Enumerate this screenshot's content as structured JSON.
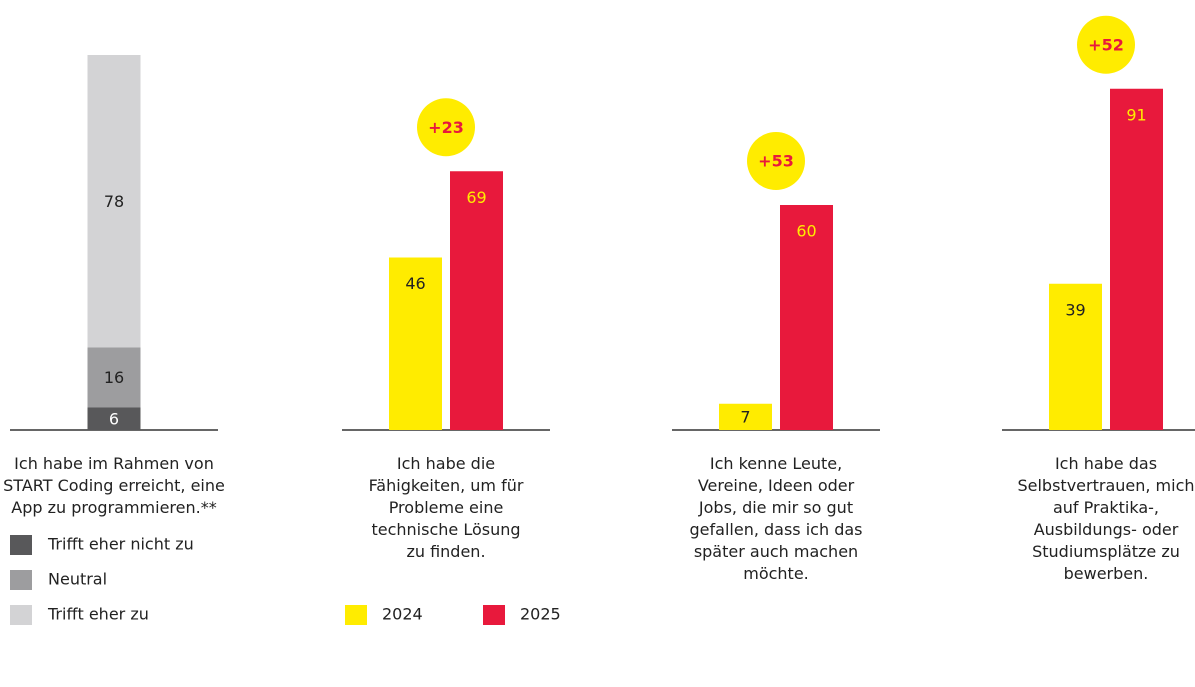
{
  "chart_data": [
    {
      "type": "stacked_bar",
      "categories": [
        "Ich habe im Rahmen von START Coding erreicht, eine App zu programmieren.**"
      ],
      "series": [
        {
          "name": "Trifft eher nicht zu",
          "color": "#58585a",
          "values": [
            6
          ]
        },
        {
          "name": "Neutral",
          "color": "#9d9d9f",
          "values": [
            16
          ]
        },
        {
          "name": "Trifft eher zu",
          "color": "#d3d3d5",
          "values": [
            78
          ]
        }
      ],
      "ylim": [
        0,
        100
      ]
    },
    {
      "type": "bar",
      "categories": [
        "Ich habe die Fähigkeiten, um für Probleme eine technische Lösung zu finden.",
        "Ich kenne Leute, Vereine, Ideen oder Jobs, die mir so gut gefallen, dass ich das später auch machen möchte.",
        "Ich habe das Selbstvertrauen, mich auf Praktika-, Ausbildungs- oder Studiumsplätze zu bewerben."
      ],
      "series": [
        {
          "name": "2024",
          "color": "#ffec00",
          "values": [
            46,
            7,
            39
          ]
        },
        {
          "name": "2025",
          "color": "#e8193c",
          "values": [
            69,
            60,
            91
          ]
        }
      ],
      "annotations": [
        "+23",
        "+53",
        "+52"
      ],
      "ylim": [
        0,
        100
      ]
    }
  ]
}
